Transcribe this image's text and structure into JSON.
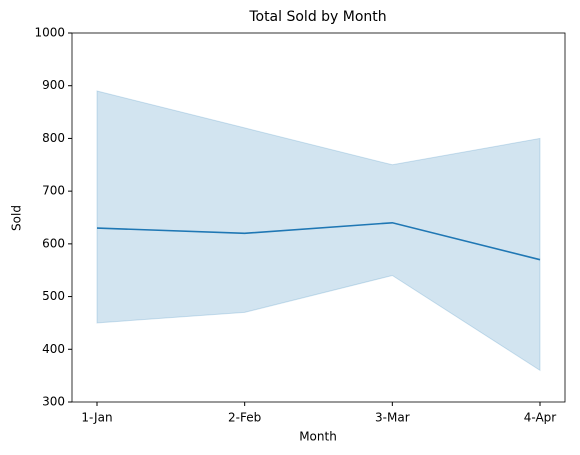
{
  "chart_data": {
    "type": "line",
    "title": "Total Sold by Month",
    "x_label": "Month",
    "y_label": "Sold",
    "categories": [
      "1-Jan",
      "2-Feb",
      "3-Mar",
      "4-Apr"
    ],
    "values": [
      630,
      620,
      640,
      570
    ],
    "band_upper": [
      890,
      820,
      750,
      800
    ],
    "band_lower": [
      450,
      470,
      540,
      360
    ],
    "color": "#1f77b4",
    "band_color": "#1f77b4",
    "ylim": [
      300,
      1000
    ],
    "yticks": [
      300,
      400,
      500,
      600,
      700,
      800,
      900,
      1000
    ],
    "grid": false
  }
}
